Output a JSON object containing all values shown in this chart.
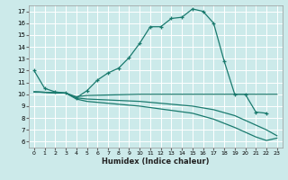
{
  "xlabel": "Humidex (Indice chaleur)",
  "bg_color": "#cceaea",
  "grid_color": "#ffffff",
  "line_color": "#1a7a6e",
  "xlim": [
    -0.5,
    23.5
  ],
  "ylim": [
    5.5,
    17.5
  ],
  "xticks": [
    0,
    1,
    2,
    3,
    4,
    5,
    6,
    7,
    8,
    9,
    10,
    11,
    12,
    13,
    14,
    15,
    16,
    17,
    18,
    19,
    20,
    21,
    22,
    23
  ],
  "yticks": [
    6,
    7,
    8,
    9,
    10,
    11,
    12,
    13,
    14,
    15,
    16,
    17
  ],
  "series": [
    {
      "x": [
        0,
        1,
        2,
        3,
        4,
        5,
        6,
        7,
        8,
        9,
        10,
        11,
        12,
        13,
        14,
        15,
        16,
        17,
        18,
        19,
        20,
        21,
        22
      ],
      "y": [
        12.0,
        10.5,
        10.2,
        10.1,
        9.7,
        10.3,
        11.2,
        11.8,
        12.2,
        13.1,
        14.3,
        15.7,
        15.7,
        16.4,
        16.5,
        17.2,
        17.0,
        16.0,
        12.8,
        10.0,
        10.0,
        8.5,
        8.4
      ],
      "marker": true
    },
    {
      "x": [
        0,
        3,
        4,
        5,
        10,
        15,
        17,
        19,
        20,
        21,
        22,
        23
      ],
      "y": [
        10.2,
        10.1,
        9.8,
        9.9,
        10.0,
        10.0,
        10.0,
        10.0,
        10.0,
        10.0,
        10.0,
        10.0
      ],
      "marker": false
    },
    {
      "x": [
        0,
        3,
        4,
        5,
        10,
        15,
        17,
        19,
        20,
        21,
        22,
        23
      ],
      "y": [
        10.2,
        10.1,
        9.7,
        9.6,
        9.4,
        9.0,
        8.7,
        8.2,
        7.8,
        7.4,
        7.0,
        6.5
      ],
      "marker": false
    },
    {
      "x": [
        0,
        3,
        4,
        5,
        10,
        15,
        17,
        19,
        20,
        21,
        22,
        23
      ],
      "y": [
        10.2,
        10.1,
        9.6,
        9.4,
        9.0,
        8.4,
        7.9,
        7.2,
        6.8,
        6.4,
        6.1,
        6.3
      ],
      "marker": false
    }
  ]
}
